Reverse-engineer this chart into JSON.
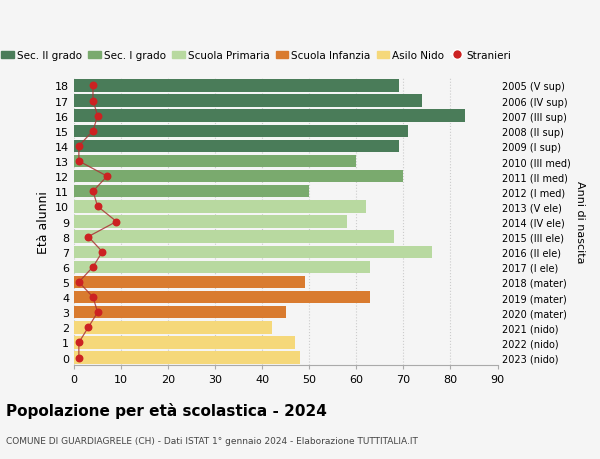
{
  "ages": [
    18,
    17,
    16,
    15,
    14,
    13,
    12,
    11,
    10,
    9,
    8,
    7,
    6,
    5,
    4,
    3,
    2,
    1,
    0
  ],
  "right_labels_by_age": {
    "18": "2005 (V sup)",
    "17": "2006 (IV sup)",
    "16": "2007 (III sup)",
    "15": "2008 (II sup)",
    "14": "2009 (I sup)",
    "13": "2010 (III med)",
    "12": "2011 (II med)",
    "11": "2012 (I med)",
    "10": "2013 (V ele)",
    "9": "2014 (IV ele)",
    "8": "2015 (III ele)",
    "7": "2016 (II ele)",
    "6": "2017 (I ele)",
    "5": "2018 (mater)",
    "4": "2019 (mater)",
    "3": "2020 (mater)",
    "2": "2021 (nido)",
    "1": "2022 (nido)",
    "0": "2023 (nido)"
  },
  "bar_values": [
    69,
    74,
    83,
    71,
    69,
    60,
    70,
    50,
    62,
    58,
    68,
    76,
    63,
    49,
    63,
    45,
    42,
    47,
    48
  ],
  "stranieri_values": [
    4,
    4,
    5,
    4,
    1,
    1,
    7,
    4,
    5,
    9,
    3,
    6,
    4,
    1,
    4,
    5,
    3,
    1,
    1
  ],
  "bar_colors": [
    "#4a7c59",
    "#4a7c59",
    "#4a7c59",
    "#4a7c59",
    "#4a7c59",
    "#7aaa6e",
    "#7aaa6e",
    "#7aaa6e",
    "#b8d9a0",
    "#b8d9a0",
    "#b8d9a0",
    "#b8d9a0",
    "#b8d9a0",
    "#d97b2f",
    "#d97b2f",
    "#d97b2f",
    "#f5d87a",
    "#f5d87a",
    "#f5d87a"
  ],
  "legend_labels": [
    "Sec. II grado",
    "Sec. I grado",
    "Scuola Primaria",
    "Scuola Infanzia",
    "Asilo Nido",
    "Stranieri"
  ],
  "legend_colors": [
    "#4a7c59",
    "#7aaa6e",
    "#b8d9a0",
    "#d97b2f",
    "#f5d87a",
    "#cc2222"
  ],
  "title": "Popolazione per età scolastica - 2024",
  "subtitle": "COMUNE DI GUARDIAGRELE (CH) - Dati ISTAT 1° gennaio 2024 - Elaborazione TUTTITALIA.IT",
  "ylabel": "Età alunni",
  "right_ylabel": "Anni di nascita",
  "xlim": [
    0,
    90
  ],
  "xticks": [
    0,
    10,
    20,
    30,
    40,
    50,
    60,
    70,
    80,
    90
  ],
  "background_color": "#f5f5f5",
  "grid_color": "#cccccc",
  "stranieri_color": "#cc2222",
  "stranieri_line_color": "#aa3333"
}
